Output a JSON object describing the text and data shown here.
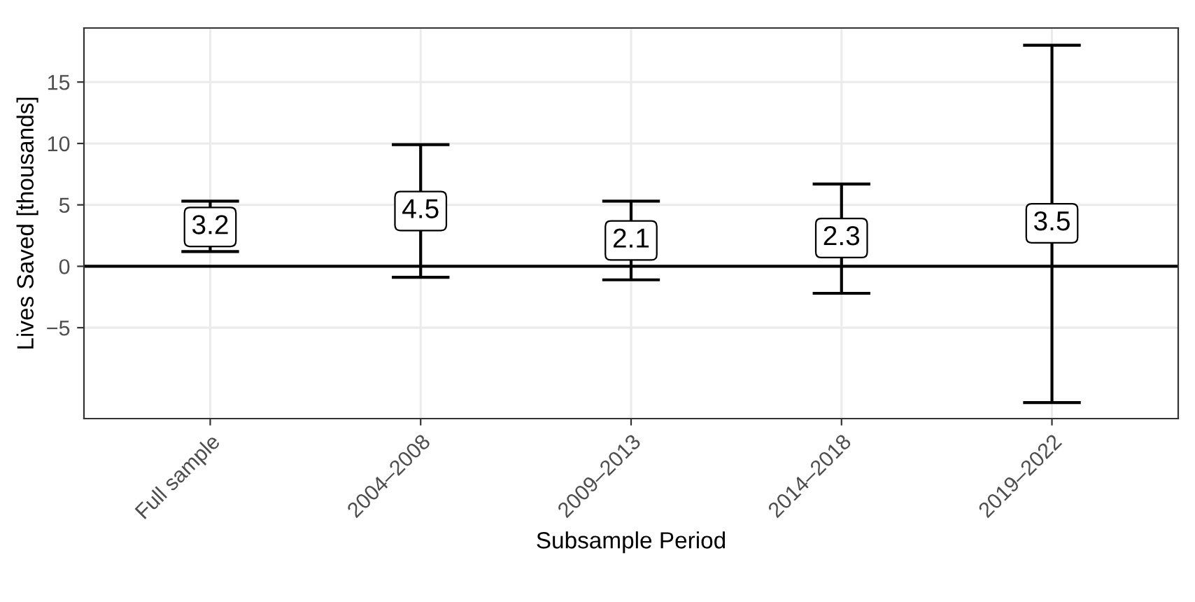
{
  "chart_data": {
    "type": "scatter",
    "xlabel": "Subsample Period",
    "ylabel": "Lives Saved [thousands]",
    "categories": [
      "Full sample",
      "2004–2008",
      "2009–2013",
      "2014–2018",
      "2019–2022"
    ],
    "values": [
      3.2,
      4.5,
      2.1,
      2.3,
      3.5
    ],
    "errors": [
      [
        1.2,
        5.3
      ],
      [
        -0.9,
        9.9
      ],
      [
        -1.1,
        5.3
      ],
      [
        -2.2,
        6.7
      ],
      [
        -11.1,
        18.0
      ]
    ],
    "data_labels": true,
    "color": "#000000",
    "ylim": [
      -12.4,
      19.4
    ],
    "yticks": [
      {
        "value": -5,
        "label": "−5"
      },
      0,
      5,
      10,
      15
    ],
    "ref_lines": [
      {
        "axis": "y",
        "value": 0,
        "color": "#000000"
      }
    ],
    "grid": true
  }
}
